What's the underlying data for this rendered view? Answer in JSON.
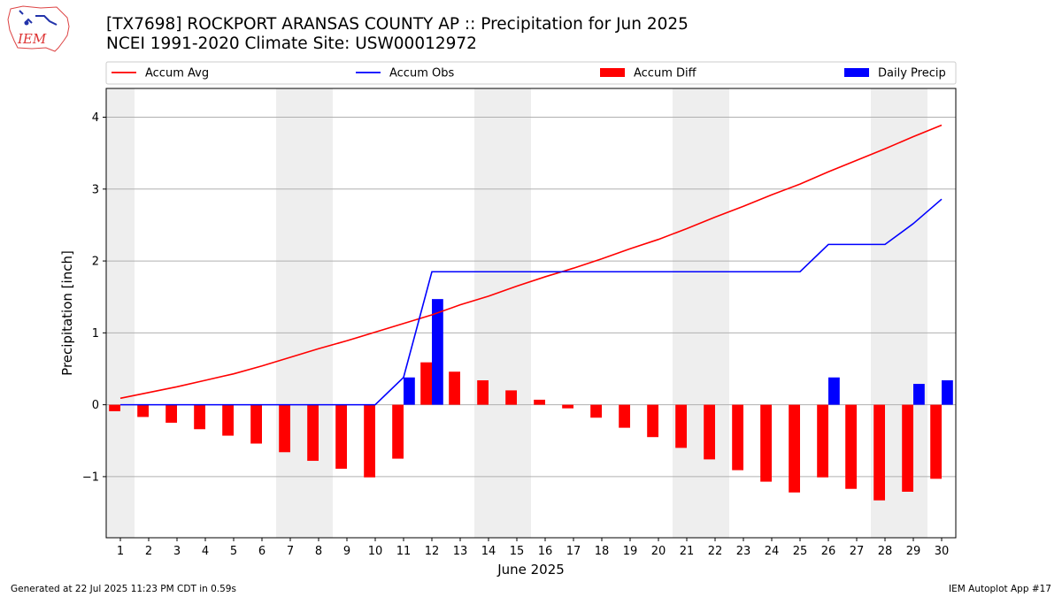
{
  "header": {
    "title_line1": "[TX7698] ROCKPORT ARANSAS COUNTY AP :: Precipitation for Jun 2025",
    "title_line2": "NCEI 1991-2020 Climate Site: USW00012972",
    "logo_text": "IEM"
  },
  "footer": {
    "left": "Generated at 22 Jul 2025 11:23 PM CDT in 0.59s",
    "right": "IEM Autoplot App #17"
  },
  "colors": {
    "accum_avg": "#ff0000",
    "accum_obs": "#0000ff",
    "accum_diff": "#ff0000",
    "daily_precip": "#0000ff",
    "weekend_shade": "#eeeeee",
    "grid": "#b0b0b0"
  },
  "chart_data": {
    "type": "bar",
    "title": "[TX7698] ROCKPORT ARANSAS COUNTY AP :: Precipitation for Jun 2025",
    "xlabel": "June 2025",
    "ylabel": "Precipitation [inch]",
    "ylim": [
      -1.85,
      4.4
    ],
    "xlim": [
      0.5,
      30.5
    ],
    "yticks": [
      -1,
      0,
      1,
      2,
      3,
      4
    ],
    "ytick_labels": [
      "−1",
      "0",
      "1",
      "2",
      "3",
      "4"
    ],
    "grid": "horizontal",
    "legend": "top, single row",
    "x": [
      1,
      2,
      3,
      4,
      5,
      6,
      7,
      8,
      9,
      10,
      11,
      12,
      13,
      14,
      15,
      16,
      17,
      18,
      19,
      20,
      21,
      22,
      23,
      24,
      25,
      26,
      27,
      28,
      29,
      30
    ],
    "weekend_days": [
      1,
      7,
      8,
      14,
      15,
      21,
      22,
      28,
      29
    ],
    "series": [
      {
        "name": "Accum Avg",
        "kind": "line",
        "values": [
          0.09,
          0.17,
          0.25,
          0.34,
          0.43,
          0.54,
          0.66,
          0.78,
          0.89,
          1.01,
          1.13,
          1.25,
          1.39,
          1.51,
          1.65,
          1.78,
          1.9,
          2.03,
          2.17,
          2.3,
          2.45,
          2.61,
          2.76,
          2.92,
          3.07,
          3.24,
          3.4,
          3.56,
          3.73,
          3.89
        ]
      },
      {
        "name": "Accum Obs",
        "kind": "line",
        "values": [
          0,
          0,
          0,
          0,
          0,
          0,
          0,
          0,
          0,
          0,
          0.38,
          1.85,
          1.85,
          1.85,
          1.85,
          1.85,
          1.85,
          1.85,
          1.85,
          1.85,
          1.85,
          1.85,
          1.85,
          1.85,
          1.85,
          2.23,
          2.23,
          2.23,
          2.52,
          2.86
        ]
      },
      {
        "name": "Accum Diff",
        "kind": "bar",
        "values": [
          -0.09,
          -0.17,
          -0.25,
          -0.34,
          -0.43,
          -0.54,
          -0.66,
          -0.78,
          -0.89,
          -1.01,
          -0.75,
          0.59,
          0.46,
          0.34,
          0.2,
          0.07,
          -0.05,
          -0.18,
          -0.32,
          -0.45,
          -0.6,
          -0.76,
          -0.91,
          -1.07,
          -1.22,
          -1.01,
          -1.17,
          -1.33,
          -1.21,
          -1.03
        ]
      },
      {
        "name": "Daily Precip",
        "kind": "bar",
        "values": [
          0,
          0,
          0,
          0,
          0,
          0,
          0,
          0,
          0,
          0,
          0.38,
          1.47,
          0,
          0,
          0,
          0,
          0,
          0,
          0,
          0,
          0,
          0,
          0,
          0,
          0,
          0.38,
          0,
          0,
          0.29,
          0.34
        ]
      }
    ]
  }
}
